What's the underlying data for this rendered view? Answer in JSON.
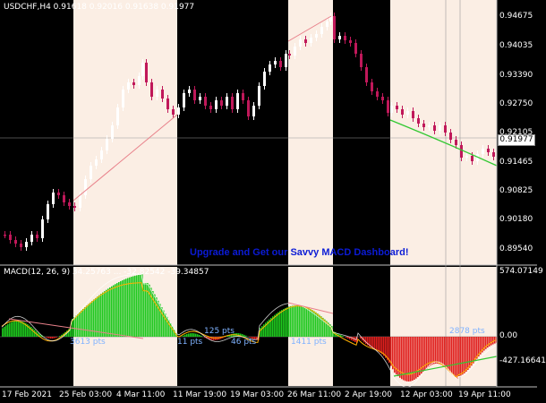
{
  "colors": {
    "background": "#000000",
    "session_highlight": "#fbeee4",
    "bull_candle": "#ffffff",
    "bear_candle": "#c0185a",
    "trend_line": "#e8808a",
    "trend_curve_green": "#32c832",
    "macd_bull": "#1ec81e",
    "macd_bear": "#e0201e",
    "signal_line": "#ffb000",
    "pts_label": "#7fb2ff",
    "banner": "#0b1bd6"
  },
  "main_chart": {
    "header_label": "USDCHF,H4  0.91618 0.92016 0.91638 0.91977",
    "current_price": "0.91977",
    "price_ticks": [
      "0.94675",
      "0.94035",
      "0.93390",
      "0.92750",
      "0.92105",
      "0.91465",
      "0.90825",
      "0.90180",
      "0.89540"
    ],
    "banner_text": "Upgrade and Get our Savvy MACD Dashboard!"
  },
  "macd_panel": {
    "header_label": "MACD(12, 26, 9) 34.25763 ... -32.82542 -39.34857",
    "value_ticks": [
      "574.07149",
      "0.00",
      "-427.16641"
    ],
    "pts_labels": [
      "3613 pts",
      "125 pts",
      "11 pts",
      "46 pts",
      "1411 pts",
      "2878 pts"
    ]
  },
  "time_axis": {
    "labels": [
      "17 Feb 2021",
      "25 Feb 03:00",
      "4 Mar 11:00",
      "11 Mar 19:00",
      "19 Mar 03:00",
      "26 Mar 11:00",
      "2 Apr 19:00",
      "12 Apr 03:00",
      "19 Apr 11:00"
    ]
  }
}
